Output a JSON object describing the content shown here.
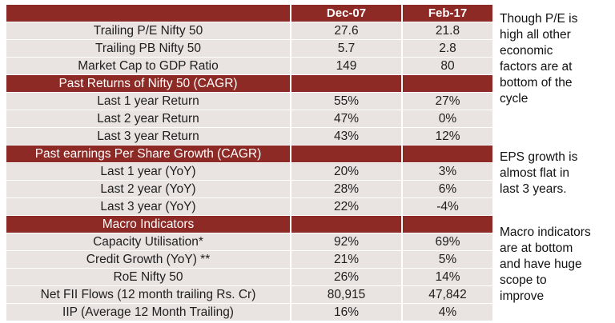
{
  "header": {
    "label": "",
    "col1": "Dec-07",
    "col2": "Feb-17"
  },
  "rows": [
    {
      "type": "data",
      "label": "Trailing P/E Nifty 50",
      "v1": "27.6",
      "v2": "21.8"
    },
    {
      "type": "data",
      "label": "Trailing PB Nifty 50",
      "v1": "5.7",
      "v2": "2.8"
    },
    {
      "type": "data",
      "label": "Market Cap to GDP Ratio",
      "v1": "149",
      "v2": "80"
    },
    {
      "type": "section",
      "label": "Past Returns of Nifty 50 (CAGR)",
      "v1": "",
      "v2": ""
    },
    {
      "type": "data",
      "label": "Last 1 year Return",
      "v1": "55%",
      "v2": "27%"
    },
    {
      "type": "data",
      "label": "Last 2 year Return",
      "v1": "47%",
      "v2": "0%"
    },
    {
      "type": "data",
      "label": "Last 3 year Return",
      "v1": "43%",
      "v2": "12%"
    },
    {
      "type": "section",
      "label": "Past earnings Per Share Growth (CAGR)",
      "v1": "",
      "v2": ""
    },
    {
      "type": "data",
      "label": "Last 1 year (YoY)",
      "v1": "20%",
      "v2": "3%"
    },
    {
      "type": "data",
      "label": "Last 2 year (YoY)",
      "v1": "28%",
      "v2": "6%"
    },
    {
      "type": "data",
      "label": "Last 3 year (YoY)",
      "v1": "22%",
      "v2": "-4%"
    },
    {
      "type": "section",
      "label": "Macro Indicators",
      "v1": "",
      "v2": ""
    },
    {
      "type": "data",
      "label": "Capacity Utilisation*",
      "v1": "92%",
      "v2": "69%"
    },
    {
      "type": "data",
      "label": "Credit Growth (YoY) **",
      "v1": "21%",
      "v2": "5%"
    },
    {
      "type": "data",
      "label": "RoE Nifty 50",
      "v1": "26%",
      "v2": "14%"
    },
    {
      "type": "data",
      "label": "Net FII Flows (12 month trailing Rs. Cr)",
      "v1": "80,915",
      "v2": "47,842"
    },
    {
      "type": "data",
      "label": "IIP (Average 12 Month Trailing)",
      "v1": "16%",
      "v2": "4%"
    }
  ],
  "notes": [
    {
      "text": "Though P/E is\nhigh all other\neconomic\nfactors are at\nbottom of the\ncycle"
    },
    {
      "text": "EPS growth is\nalmost flat in\nlast 3 years."
    },
    {
      "text": "Macro indicators\nare at bottom\nand have huge\nscope to\nimprove"
    }
  ],
  "colors": {
    "header_bg": "#8e2a25",
    "row_bg": "#e9e3e2",
    "text": "#1e1e1e"
  }
}
